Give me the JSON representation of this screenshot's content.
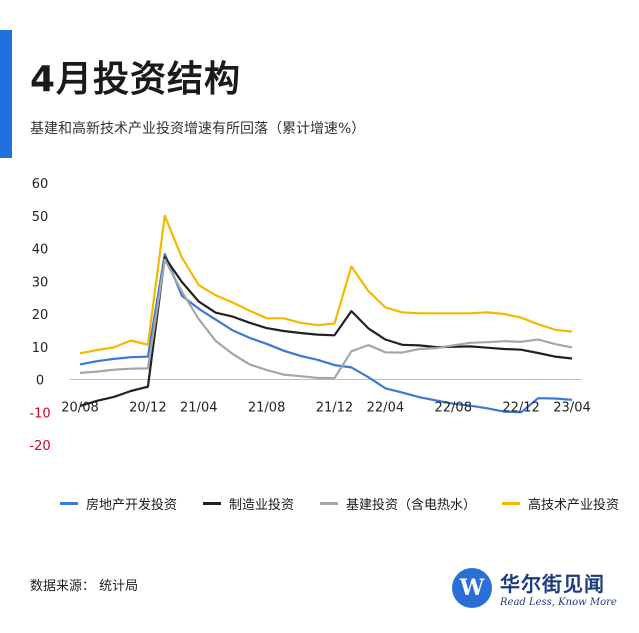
{
  "header": {
    "title": "4月投资结构",
    "subtitle": "基建和高新技术产业投资增速有所回落（累计增速%）"
  },
  "footer": {
    "source": "数据来源： 统计局"
  },
  "logo": {
    "mark": "W",
    "name_cn": "华尔街见闻",
    "tagline": "Read Less, Know More"
  },
  "colors": {
    "accent": "#1f6fde",
    "negative_tick": "#d0021b"
  },
  "chart_data": {
    "type": "line",
    "ylim": [
      -20,
      60
    ],
    "yticks": [
      -20,
      -10,
      0,
      10,
      20,
      30,
      40,
      50,
      60
    ],
    "x_tick_labels": [
      "20/08",
      "20/12",
      "21/04",
      "21/08",
      "21/12",
      "22/04",
      "22/08",
      "22/12",
      "23/04"
    ],
    "x": [
      "20/08",
      "20/09",
      "20/10",
      "20/11",
      "20/12",
      "21/02",
      "21/03",
      "21/04",
      "21/05",
      "21/06",
      "21/07",
      "21/08",
      "21/09",
      "21/10",
      "21/11",
      "21/12",
      "22/02",
      "22/03",
      "22/04",
      "22/05",
      "22/06",
      "22/07",
      "22/08",
      "22/09",
      "22/10",
      "22/11",
      "22/12",
      "23/02",
      "23/03",
      "23/04"
    ],
    "grid": false,
    "legend_position": "bottom",
    "series": [
      {
        "name": "房地产开发投资",
        "color": "#3b78d8",
        "values": [
          4.6,
          5.6,
          6.3,
          6.8,
          7.0,
          38.3,
          25.6,
          21.6,
          18.3,
          15.0,
          12.7,
          10.9,
          8.8,
          7.2,
          6.0,
          4.4,
          3.7,
          0.7,
          -2.7,
          -4.0,
          -5.4,
          -6.4,
          -7.4,
          -8.0,
          -8.8,
          -9.8,
          -10.0,
          -5.7,
          -5.8,
          -6.2
        ]
      },
      {
        "name": "制造业投资",
        "color": "#222222",
        "values": [
          -8.1,
          -6.5,
          -5.3,
          -3.5,
          -2.2,
          37.3,
          29.8,
          23.8,
          20.4,
          19.2,
          17.3,
          15.7,
          14.8,
          14.2,
          13.7,
          13.5,
          20.9,
          15.6,
          12.2,
          10.6,
          10.4,
          9.9,
          10.0,
          10.1,
          9.7,
          9.3,
          9.1,
          8.1,
          7.0,
          6.4
        ]
      },
      {
        "name": "基建投资（含电热水）",
        "color": "#a6a6a6",
        "values": [
          2.0,
          2.4,
          3.0,
          3.3,
          3.4,
          36.6,
          26.9,
          18.4,
          11.8,
          7.8,
          4.6,
          2.9,
          1.5,
          1.0,
          0.5,
          0.4,
          8.6,
          10.5,
          8.3,
          8.2,
          9.3,
          9.6,
          10.4,
          11.2,
          11.4,
          11.7,
          11.5,
          12.2,
          10.8,
          9.8
        ]
      },
      {
        "name": "高技术产业投资",
        "color": "#f5b800",
        "values": [
          8.0,
          9.0,
          9.8,
          11.9,
          10.6,
          50.0,
          37.3,
          28.8,
          25.7,
          23.5,
          21.0,
          18.7,
          18.7,
          17.3,
          16.6,
          17.1,
          34.5,
          27.0,
          22.0,
          20.5,
          20.2,
          20.2,
          20.2,
          20.2,
          20.5,
          20.0,
          18.9,
          16.9,
          15.2,
          14.6
        ]
      }
    ]
  }
}
